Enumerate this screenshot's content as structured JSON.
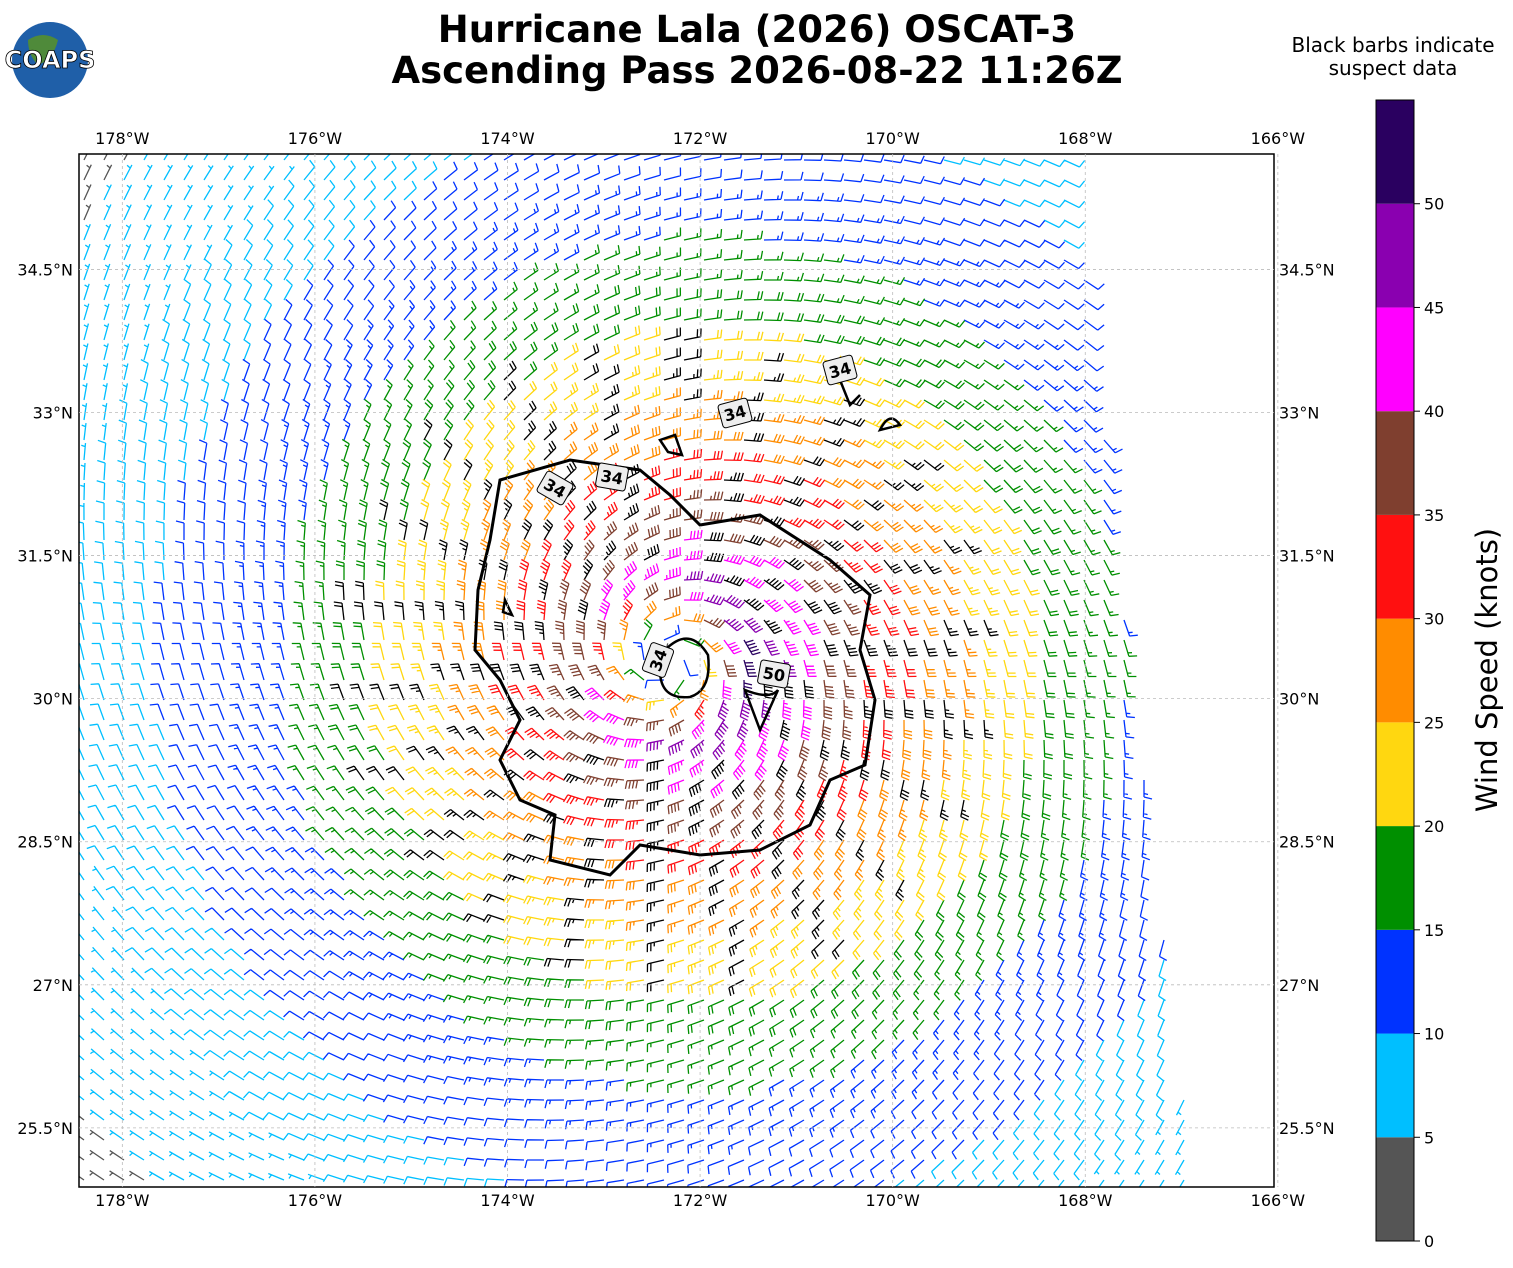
{
  "header": {
    "logo_text": "COAPS",
    "title": "Hurricane Lala (2026) OSCAT-3",
    "subtitle": "Ascending Pass 2026-08-22 11:26Z",
    "note": [
      "Black barbs indicate",
      "suspect data"
    ]
  },
  "map": {
    "lonlim": [
      -178.45,
      -166.04
    ],
    "latlim": [
      24.88,
      35.71
    ],
    "lon_ticks": [
      {
        "value": -178,
        "label": "178°W"
      },
      {
        "value": -176,
        "label": "176°W"
      },
      {
        "value": -174,
        "label": "174°W"
      },
      {
        "value": -172,
        "label": "172°W"
      },
      {
        "value": -170,
        "label": "170°W"
      },
      {
        "value": -168,
        "label": "168°W"
      },
      {
        "value": -166,
        "label": "166°W"
      }
    ],
    "lat_ticks": [
      {
        "value": 34.5,
        "label": "34.5°N"
      },
      {
        "value": 33,
        "label": "33°N"
      },
      {
        "value": 31.5,
        "label": "31.5°N"
      },
      {
        "value": 30,
        "label": "30°N"
      },
      {
        "value": 28.5,
        "label": "28.5°N"
      },
      {
        "value": 27,
        "label": "27°N"
      },
      {
        "value": 25.5,
        "label": "25.5°N"
      }
    ],
    "contour_labels": [
      "34",
      "34",
      "34",
      "34",
      "34",
      "50"
    ]
  },
  "colorbar": {
    "label": "Wind Speed (knots)",
    "lim": [
      0,
      55
    ],
    "ticks": [
      0,
      5,
      10,
      15,
      20,
      25,
      30,
      35,
      40,
      45,
      50
    ],
    "levels": [
      0,
      5,
      10,
      15,
      20,
      25,
      30,
      35,
      40,
      45,
      50,
      55
    ],
    "colors": [
      "#555555",
      "#00bfff",
      "#0033ff",
      "#008f00",
      "#ffd710",
      "#ff8c00",
      "#ff1010",
      "#7f3f2f",
      "#ff00ff",
      "#8a00b0",
      "#2a0060"
    ]
  }
}
